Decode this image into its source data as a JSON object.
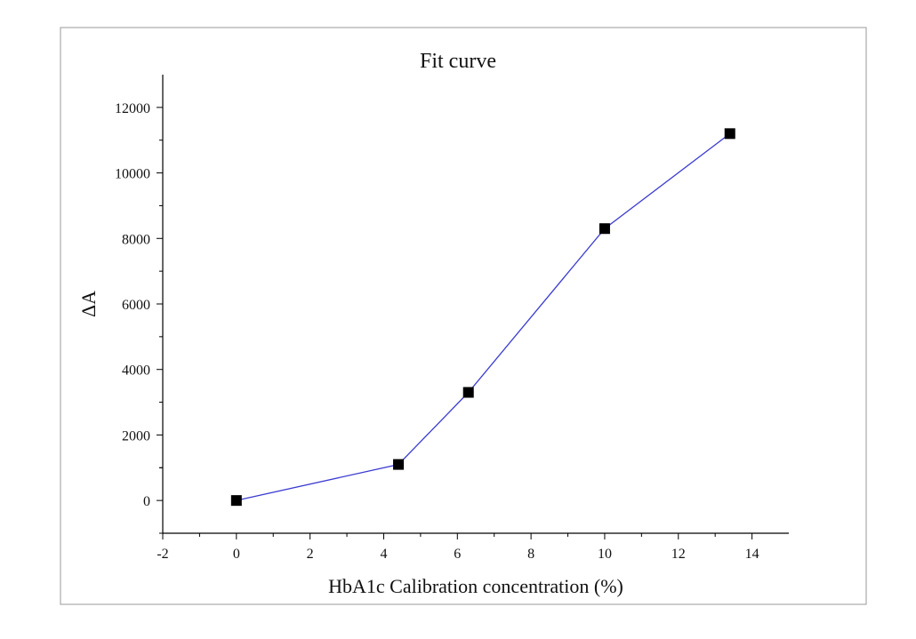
{
  "chart_data": {
    "type": "line",
    "title": "Fit curve",
    "x_label": "HbA1c Calibration concentration (%)",
    "y_label": "ΔA",
    "x": [
      0,
      4.4,
      6.3,
      10,
      13.4
    ],
    "series": [
      {
        "color": "#3b3bd1",
        "values": [
          0,
          1100,
          3300,
          8300,
          11200
        ]
      }
    ],
    "xlim": [
      -2,
      15
    ],
    "xticks": [
      -2,
      0,
      2,
      4,
      6,
      8,
      10,
      12,
      14
    ],
    "ylim": [
      -1000,
      13000
    ],
    "yticks": [
      0,
      2000,
      4000,
      6000,
      8000,
      10000,
      12000
    ]
  }
}
